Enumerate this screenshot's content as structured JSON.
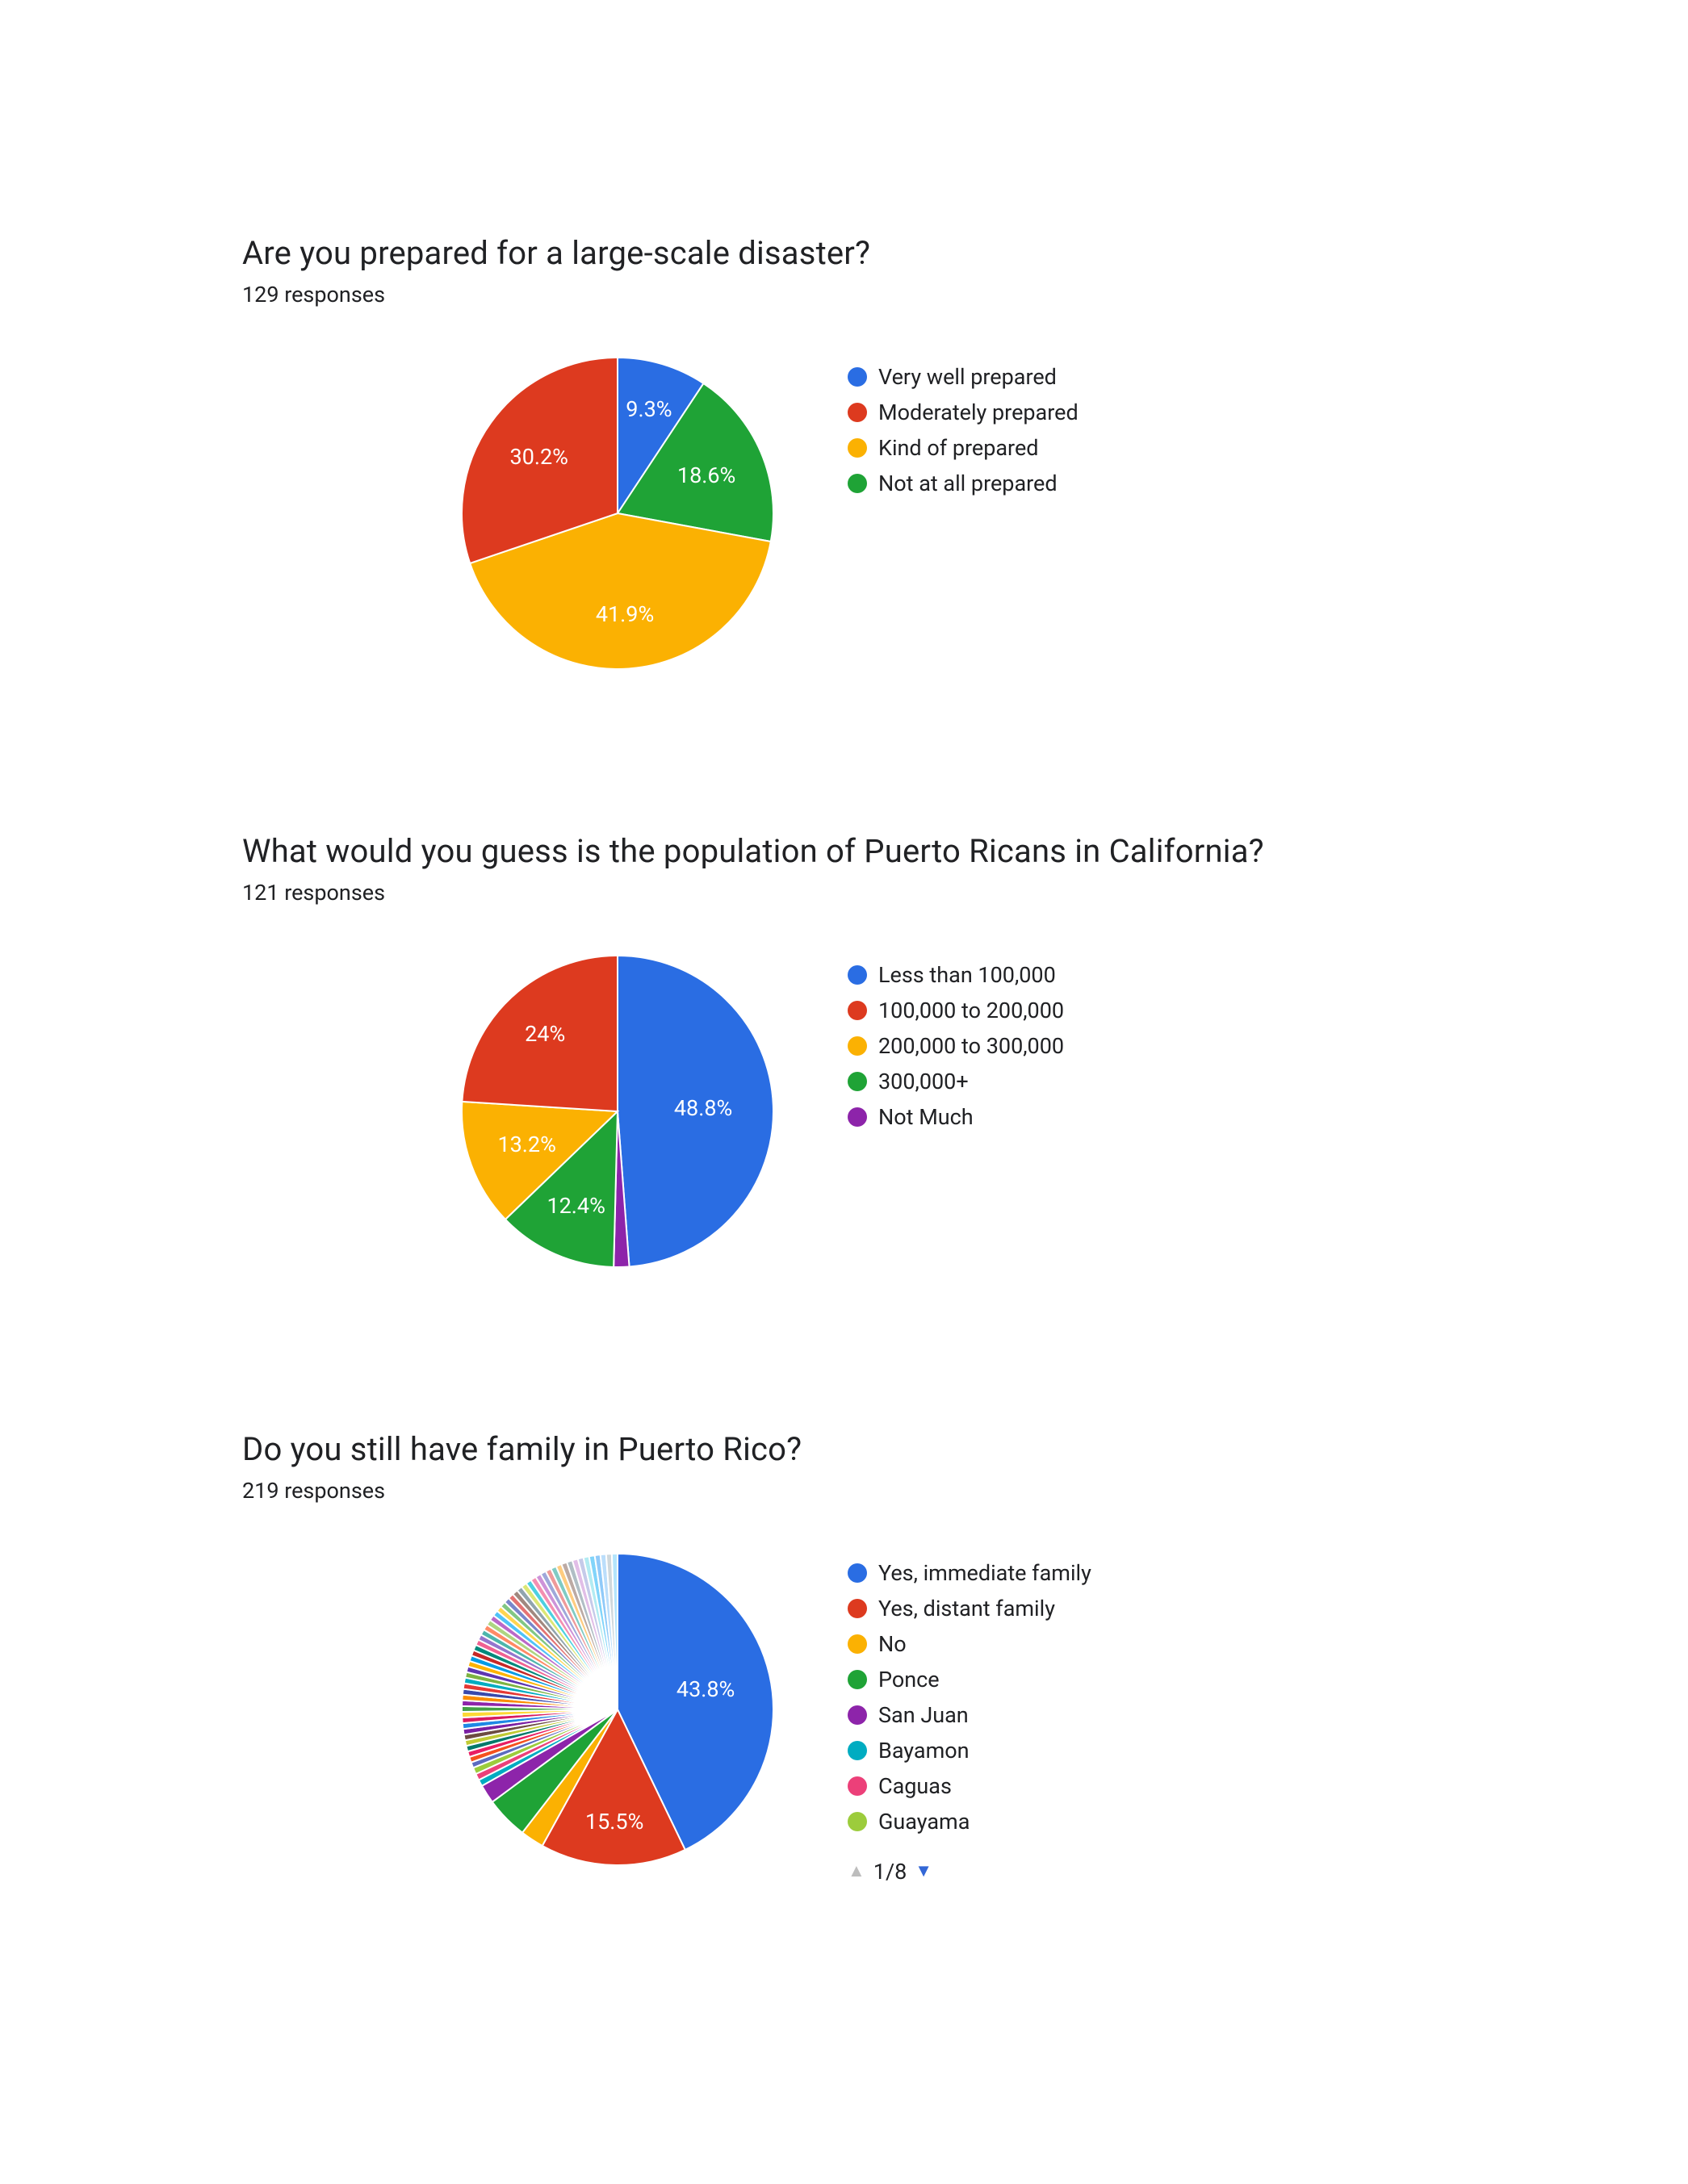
{
  "globals": {
    "background_color": "#ffffff",
    "text_color": "#202124",
    "title_fontsize": 40,
    "responses_fontsize": 27,
    "legend_fontsize": 27,
    "slice_label_fontsize": 27,
    "slice_label_color": "#ffffff",
    "slice_stroke": "#ffffff",
    "slice_stroke_width": 2
  },
  "charts": [
    {
      "id": "chart1",
      "title": "Are you prepared for a large-scale disaster?",
      "responses_text": "129 responses",
      "type": "pie",
      "start_angle": 0,
      "slices": [
        {
          "label": "Very well prepared",
          "value": 9.3,
          "color": "#2a6de3",
          "display_label": "9.3%",
          "label_radius": 0.7
        },
        {
          "label": "Not at all prepared",
          "value": 18.6,
          "color": "#1fa336",
          "display_label": "18.6%",
          "label_radius": 0.62
        },
        {
          "label": "Kind of prepared",
          "value": 41.9,
          "color": "#fbb102",
          "display_label": "41.9%",
          "label_radius": 0.65
        },
        {
          "label": "Moderately prepared",
          "value": 30.2,
          "color": "#dd3a1f",
          "display_label": "30.2%",
          "label_radius": 0.62
        }
      ],
      "legend_order": [
        0,
        3,
        2,
        1
      ]
    },
    {
      "id": "chart2",
      "title": "What would you guess is the population of Puerto Ricans in California?",
      "responses_text": "121 responses",
      "type": "pie",
      "start_angle": 0,
      "slices": [
        {
          "label": "Less than 100,000",
          "value": 48.8,
          "color": "#2a6de3",
          "display_label": "48.8%",
          "label_radius": 0.55
        },
        {
          "label": "Not Much",
          "value": 1.6,
          "color": "#8d24aa",
          "display_label": "",
          "label_radius": 0.7
        },
        {
          "label": "300,000+",
          "value": 12.4,
          "color": "#1fa336",
          "display_label": "12.4%",
          "label_radius": 0.66
        },
        {
          "label": "200,000 to 300,000",
          "value": 13.2,
          "color": "#fbb102",
          "display_label": "13.2%",
          "label_radius": 0.62
        },
        {
          "label": "100,000 to 200,000",
          "value": 24.0,
          "color": "#dd3a1f",
          "display_label": "24%",
          "label_radius": 0.68
        }
      ],
      "legend_order": [
        0,
        4,
        3,
        2,
        1
      ]
    },
    {
      "id": "chart3",
      "title": "Do you still have family in Puerto Rico?",
      "responses_text": "219 responses",
      "type": "pie",
      "start_angle": 0,
      "slices": [
        {
          "label": "Yes, immediate family",
          "value": 43.8,
          "color": "#2a6de3",
          "display_label": "43.8%",
          "label_radius": 0.58
        },
        {
          "label": "Yes, distant family",
          "value": 15.5,
          "color": "#dd3a1f",
          "display_label": "15.5%",
          "label_radius": 0.72
        },
        {
          "label": "No",
          "value": 2.5,
          "color": "#fbb102",
          "display_label": "",
          "label_radius": 0.7
        },
        {
          "label": "Ponce",
          "value": 4.5,
          "color": "#1fa336",
          "display_label": "",
          "label_radius": 0.7
        },
        {
          "label": "San Juan",
          "value": 2.0,
          "color": "#8d24aa",
          "display_label": "",
          "label_radius": 0.7
        },
        {
          "label": "Bayamon",
          "value": 0.7,
          "color": "#00acc1",
          "display_label": "",
          "label_radius": 0.7
        },
        {
          "label": "Caguas",
          "value": 0.7,
          "color": "#ec4079",
          "display_label": "",
          "label_radius": 0.7
        },
        {
          "label": "Guayama",
          "value": 0.7,
          "color": "#9ccc3c",
          "display_label": "",
          "label_radius": 0.7
        },
        {
          "value": 0.6,
          "color": "#5c6bc0"
        },
        {
          "value": 0.6,
          "color": "#f5511e"
        },
        {
          "value": 0.6,
          "color": "#e91e63"
        },
        {
          "value": 0.6,
          "color": "#00796b"
        },
        {
          "value": 0.6,
          "color": "#c0ca33"
        },
        {
          "value": 0.6,
          "color": "#6d4c41"
        },
        {
          "value": 0.6,
          "color": "#7b1fa2"
        },
        {
          "value": 0.6,
          "color": "#1e88e5"
        },
        {
          "value": 0.6,
          "color": "#d81b60"
        },
        {
          "value": 0.6,
          "color": "#fdd835"
        },
        {
          "value": 0.6,
          "color": "#43a047"
        },
        {
          "value": 0.6,
          "color": "#8e24aa"
        },
        {
          "value": 0.6,
          "color": "#fb8c00"
        },
        {
          "value": 0.6,
          "color": "#3949ab"
        },
        {
          "value": 0.6,
          "color": "#e53935"
        },
        {
          "value": 0.6,
          "color": "#00acc1"
        },
        {
          "value": 0.6,
          "color": "#7cb342"
        },
        {
          "value": 0.6,
          "color": "#5e35b1"
        },
        {
          "value": 0.6,
          "color": "#ffb300"
        },
        {
          "value": 0.6,
          "color": "#039be5"
        },
        {
          "value": 0.6,
          "color": "#c62828"
        },
        {
          "value": 0.6,
          "color": "#00897b"
        },
        {
          "value": 0.6,
          "color": "#f06292"
        },
        {
          "value": 0.6,
          "color": "#9575cd"
        },
        {
          "value": 0.6,
          "color": "#4db6ac"
        },
        {
          "value": 0.6,
          "color": "#ff8a65"
        },
        {
          "value": 0.6,
          "color": "#aed581"
        },
        {
          "value": 0.6,
          "color": "#ba68c8"
        },
        {
          "value": 0.6,
          "color": "#4fc3f7"
        },
        {
          "value": 0.6,
          "color": "#ffd54f"
        },
        {
          "value": 0.6,
          "color": "#81c784"
        },
        {
          "value": 0.6,
          "color": "#7986cb"
        },
        {
          "value": 0.6,
          "color": "#e57373"
        },
        {
          "value": 0.6,
          "color": "#a1887f"
        },
        {
          "value": 0.6,
          "color": "#90a4ae"
        },
        {
          "value": 0.6,
          "color": "#dce775"
        },
        {
          "value": 0.6,
          "color": "#4dd0e1"
        },
        {
          "value": 0.6,
          "color": "#f48fb1"
        },
        {
          "value": 0.6,
          "color": "#ce93d8"
        },
        {
          "value": 0.6,
          "color": "#9fa8da"
        },
        {
          "value": 0.6,
          "color": "#ef9a9a"
        },
        {
          "value": 0.6,
          "color": "#80cbc4"
        },
        {
          "value": 0.6,
          "color": "#ffcc80"
        },
        {
          "value": 0.6,
          "color": "#bcaaa4"
        },
        {
          "value": 0.6,
          "color": "#b0bec5"
        },
        {
          "value": 0.6,
          "color": "#e1bee7"
        },
        {
          "value": 0.6,
          "color": "#c5cae9"
        },
        {
          "value": 0.6,
          "color": "#b2ebf2"
        },
        {
          "value": 0.6,
          "color": "#81d4fa"
        },
        {
          "value": 0.6,
          "color": "#90caf9"
        },
        {
          "value": 0.6,
          "color": "#bbdefb"
        },
        {
          "value": 0.6,
          "color": "#cfd8dc"
        },
        {
          "value": 0.6,
          "color": "#b3e5fc"
        }
      ],
      "legend_order": [
        0,
        1,
        2,
        3,
        4,
        5,
        6,
        7
      ],
      "pager": {
        "text": "1/8",
        "up_color": "#bdbdbd",
        "down_color": "#3367d6"
      }
    }
  ]
}
